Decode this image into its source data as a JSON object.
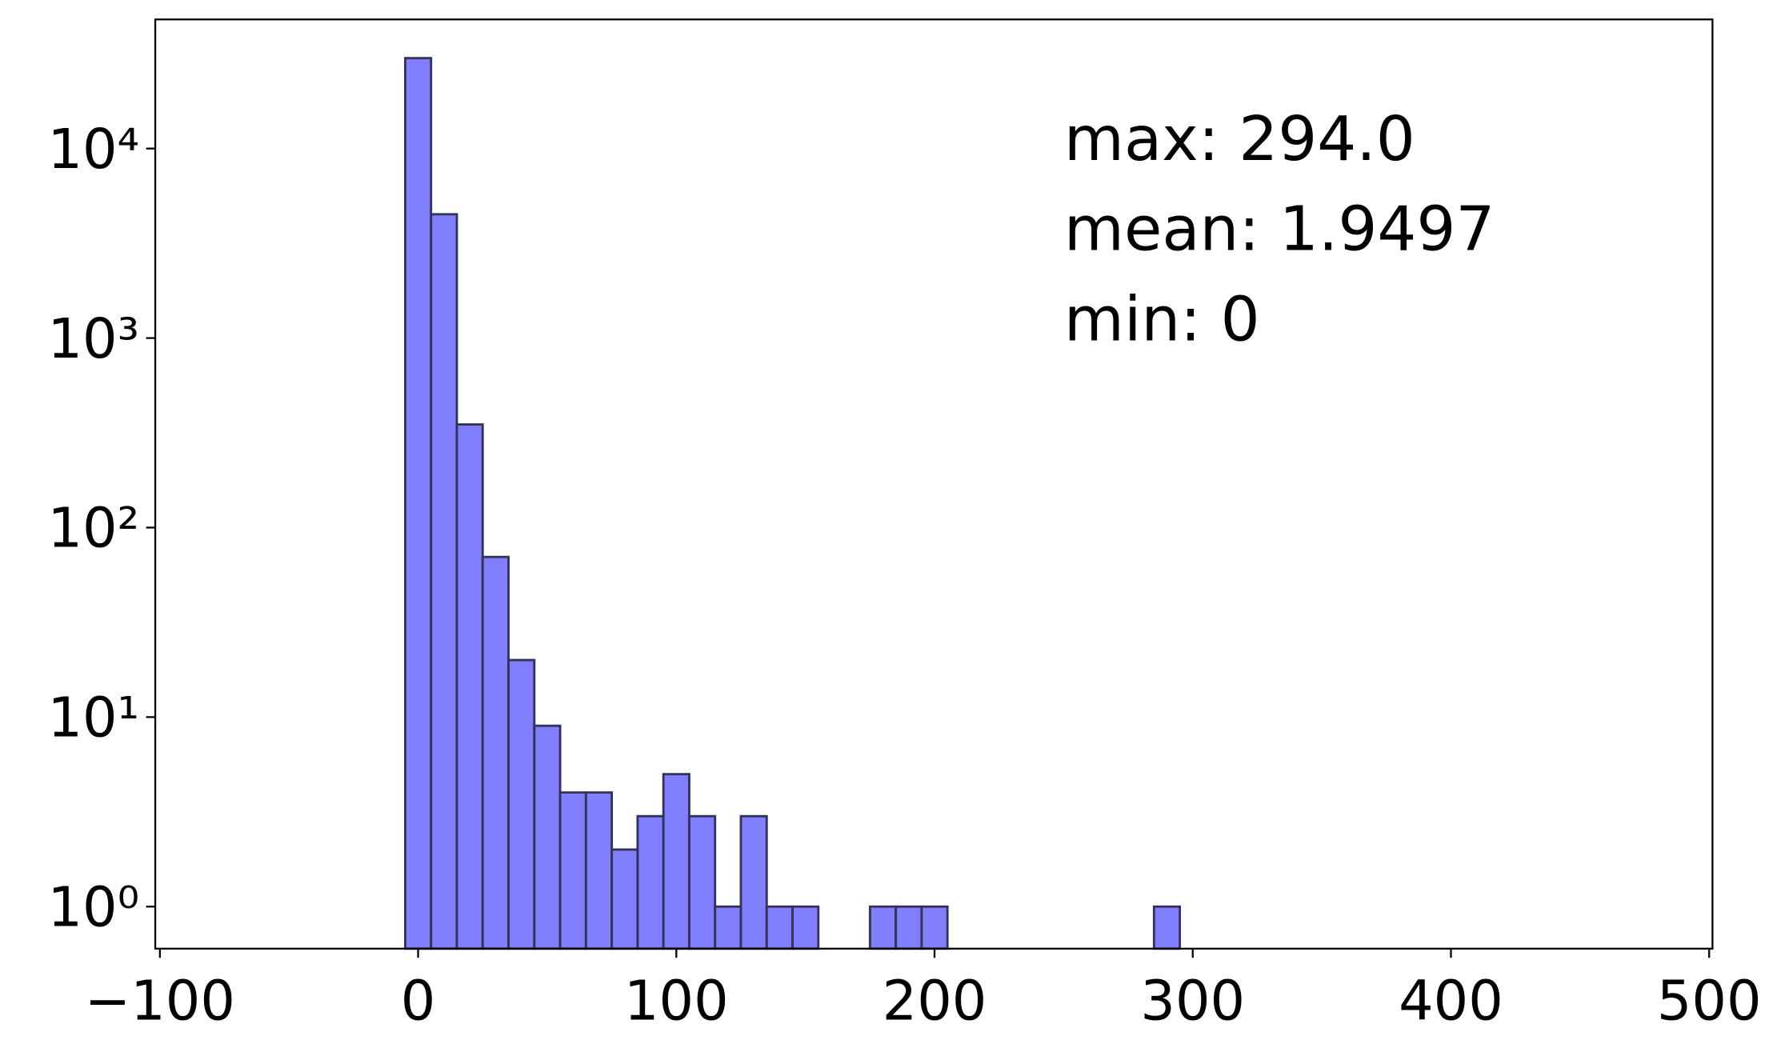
{
  "chart_data": {
    "type": "histogram",
    "bins": [
      -5,
      5,
      15,
      25,
      35,
      45,
      55,
      65,
      75,
      85,
      95,
      105,
      115,
      125,
      135,
      145,
      155,
      165,
      175,
      185,
      195,
      205,
      215,
      225,
      235,
      245,
      255,
      265,
      275,
      285,
      295
    ],
    "values": [
      30000,
      4500,
      350,
      70,
      20,
      9,
      4,
      4,
      2,
      3,
      5,
      3,
      1,
      3,
      1,
      1,
      0,
      0,
      1,
      1,
      1,
      0,
      0,
      0,
      0,
      0,
      0,
      0,
      0,
      1
    ],
    "color": "#7f7fff",
    "edgecolor": "#333355",
    "log_y": true,
    "xlim": [
      -101.8,
      501.3
    ],
    "ylim": [
      0.6,
      48000
    ],
    "xticks": [
      {
        "value": -100,
        "label": "−100"
      },
      0,
      100,
      200,
      300,
      400,
      500
    ],
    "yticks": [
      {
        "value": 1,
        "label": "10⁰"
      },
      {
        "value": 10,
        "label": "10¹"
      },
      {
        "value": 100,
        "label": "10²"
      },
      {
        "value": 1000,
        "label": "10³"
      },
      {
        "value": 10000,
        "label": "10⁴"
      }
    ],
    "annotations": [
      "max: 294.0",
      "mean: 1.9497",
      "min: 0"
    ]
  }
}
